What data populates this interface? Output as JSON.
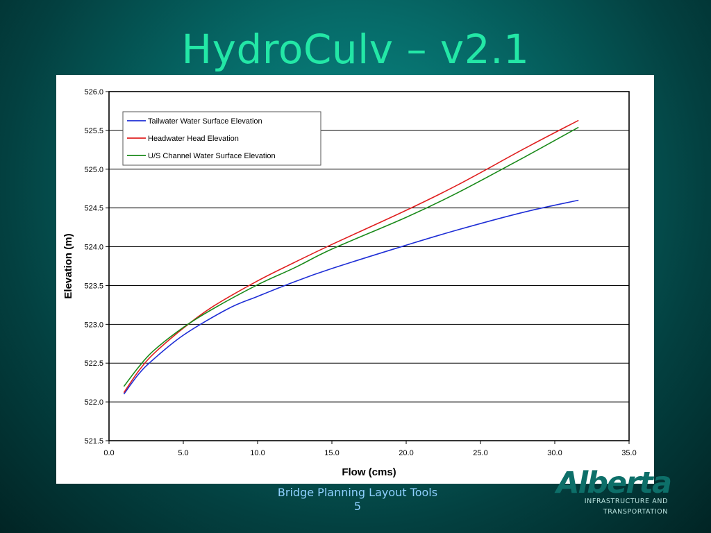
{
  "slide": {
    "title": "HydroCulv – v2.1",
    "footer_line1": "Bridge Planning Layout Tools",
    "footer_line2": "5"
  },
  "logo": {
    "word": "Alberta",
    "line1": "INFRASTRUCTURE AND",
    "line2": "TRANSPORTATION"
  },
  "colors": {
    "title": "#23e7a6",
    "footer": "#8fd0ff",
    "tailwater": "#1f2fd6",
    "headwater": "#e02020",
    "channel": "#1a8a1a"
  },
  "chart_data": {
    "type": "line",
    "title": "",
    "xlabel": "Flow (cms)",
    "ylabel": "Elevation (m)",
    "xlim": [
      0,
      35
    ],
    "ylim": [
      521.5,
      526
    ],
    "x_ticks": [
      "0.0",
      "5.0",
      "10.0",
      "15.0",
      "20.0",
      "25.0",
      "30.0",
      "35.0"
    ],
    "y_ticks": [
      "521.5",
      "522.0",
      "522.5",
      "523.0",
      "523.5",
      "524.0",
      "524.5",
      "525.0",
      "525.5",
      "526.0"
    ],
    "grid": "horizontal",
    "legend_position": "top-left",
    "series": [
      {
        "name": "Tailwater Water Surface Elevation",
        "color": "#1f2fd6",
        "x": [
          1.0,
          2.0,
          3.0,
          5.0,
          8.0,
          10.0,
          12.5,
          15.0,
          20.0,
          23.5,
          28.0,
          31.6
        ],
        "y": [
          522.1,
          522.36,
          522.55,
          522.86,
          523.2,
          523.36,
          523.55,
          523.72,
          524.02,
          524.22,
          524.45,
          524.6
        ]
      },
      {
        "name": "Headwater Head Elevation",
        "color": "#e02020",
        "x": [
          1.0,
          2.0,
          3.0,
          5.0,
          7.0,
          10.0,
          12.5,
          15.0,
          20.0,
          23.5,
          28.0,
          31.6
        ],
        "y": [
          522.12,
          522.4,
          522.62,
          522.95,
          523.23,
          523.56,
          523.8,
          524.03,
          524.47,
          524.8,
          525.27,
          525.63
        ]
      },
      {
        "name": "U/S Channel Water Surface Elevation",
        "color": "#1a8a1a",
        "x": [
          1.0,
          2.0,
          3.0,
          5.0,
          7.0,
          10.0,
          12.5,
          15.0,
          20.0,
          23.5,
          28.0,
          31.6
        ],
        "y": [
          522.2,
          522.45,
          522.66,
          522.96,
          523.2,
          523.51,
          523.73,
          523.97,
          524.38,
          524.7,
          525.16,
          525.54
        ]
      }
    ]
  }
}
